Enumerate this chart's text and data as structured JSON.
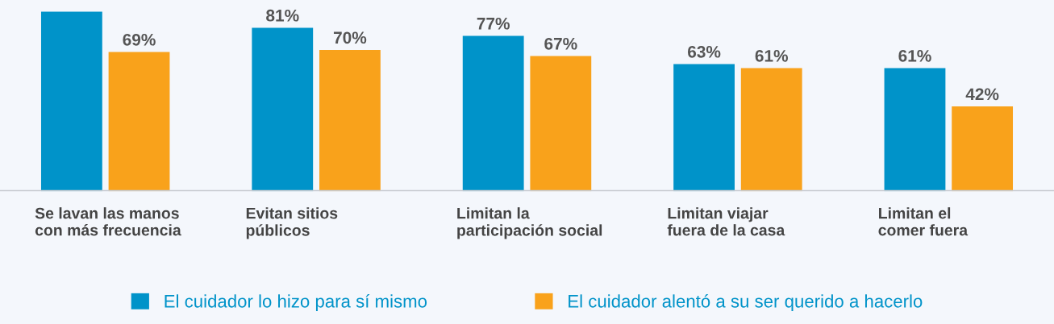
{
  "chart_data": {
    "type": "bar",
    "categories": [
      "Se lavan las manos\ncon más frecuencia",
      "Evitan sitios\npúblicos",
      "Limitan la\nparticipación social",
      "Limitan viajar\nfuera de la casa",
      "Limitan el\ncomer fuera"
    ],
    "series": [
      {
        "name": "El cuidador lo hizo para sí mismo",
        "color": "#0093c9",
        "values": [
          89,
          81,
          77,
          63,
          61
        ],
        "value_labels": [
          null,
          "81%",
          "77%",
          "63%",
          "61%"
        ]
      },
      {
        "name": "El cuidador alentó a su ser querido a hacerlo",
        "color": "#f9a21b",
        "values": [
          69,
          70,
          67,
          61,
          42
        ],
        "value_labels": [
          "69%",
          "70%",
          "67%",
          "61%",
          "42%"
        ]
      }
    ],
    "legend": "bottom"
  }
}
